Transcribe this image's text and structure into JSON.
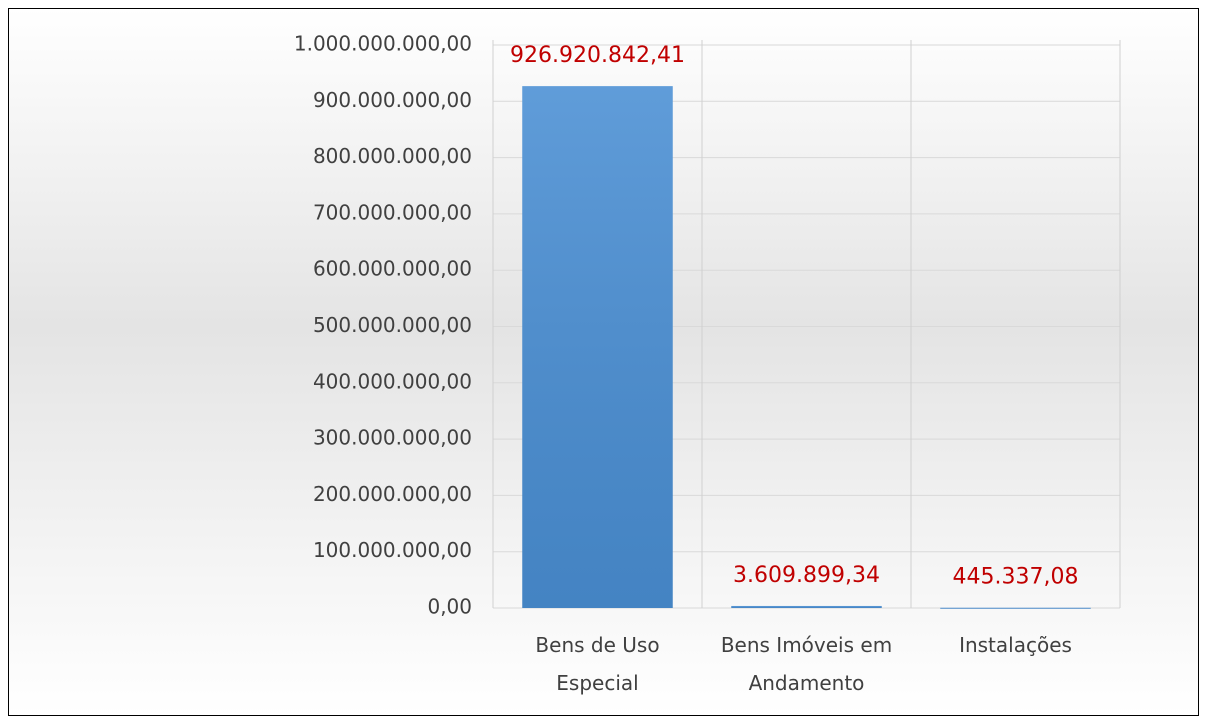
{
  "chart_data": {
    "type": "bar",
    "categories": [
      "Bens de Uso Especial",
      "Bens Imóveis em Andamento",
      "Instalações"
    ],
    "values": [
      926920842.41,
      3609899.34,
      445337.08
    ],
    "value_labels": [
      "926.920.842,41",
      "3.609.899,34",
      "445.337,08"
    ],
    "color": "#4a8fd4",
    "label_color": "#c00000",
    "ylim": [
      0,
      1000000000
    ],
    "yticks": [
      {
        "value": 0,
        "label": "0,00"
      },
      {
        "value": 100000000,
        "label": "100.000.000,00"
      },
      {
        "value": 200000000,
        "label": "200.000.000,00"
      },
      {
        "value": 300000000,
        "label": "300.000.000,00"
      },
      {
        "value": 400000000,
        "label": "400.000.000,00"
      },
      {
        "value": 500000000,
        "label": "500.000.000,00"
      },
      {
        "value": 600000000,
        "label": "600.000.000,00"
      },
      {
        "value": 700000000,
        "label": "700.000.000,00"
      },
      {
        "value": 800000000,
        "label": "800.000.000,00"
      },
      {
        "value": 900000000,
        "label": "900.000.000,00"
      },
      {
        "value": 1000000000,
        "label": "1.000.000.000,00"
      }
    ],
    "grid": true
  }
}
